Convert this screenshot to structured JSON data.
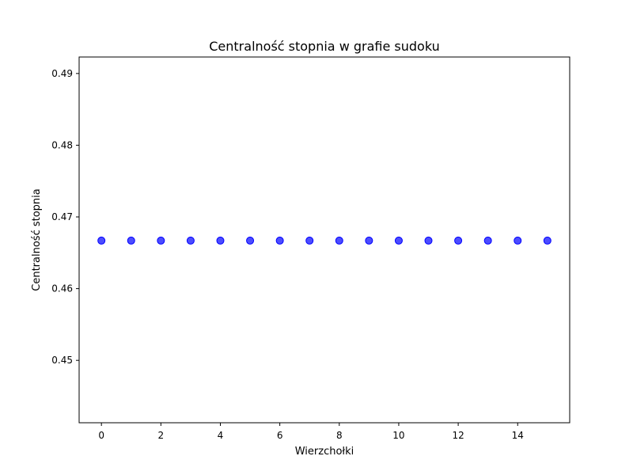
{
  "chart_data": {
    "type": "scatter",
    "title": "Centralność stopnia w grafie sudoku",
    "xlabel": "Wierzchołki",
    "ylabel": "Centralność stopnia",
    "x": [
      0,
      1,
      2,
      3,
      4,
      5,
      6,
      7,
      8,
      9,
      10,
      11,
      12,
      13,
      14,
      15
    ],
    "y": [
      0.4667,
      0.4667,
      0.4667,
      0.4667,
      0.4667,
      0.4667,
      0.4667,
      0.4667,
      0.4667,
      0.4667,
      0.4667,
      0.4667,
      0.4667,
      0.4667,
      0.4667,
      0.4667
    ],
    "xlim": [
      -0.75,
      15.75
    ],
    "ylim": [
      0.4413,
      0.4923
    ],
    "xticks": [
      0,
      2,
      4,
      6,
      8,
      10,
      12,
      14
    ],
    "yticks": [
      0.45,
      0.46,
      0.47,
      0.48,
      0.49
    ],
    "xtick_labels": [
      "0",
      "2",
      "4",
      "6",
      "8",
      "10",
      "12",
      "14"
    ],
    "ytick_labels": [
      "0.45",
      "0.46",
      "0.47",
      "0.48",
      "0.49"
    ],
    "marker_color": "#0000ff",
    "grid": false,
    "legend": "none"
  }
}
